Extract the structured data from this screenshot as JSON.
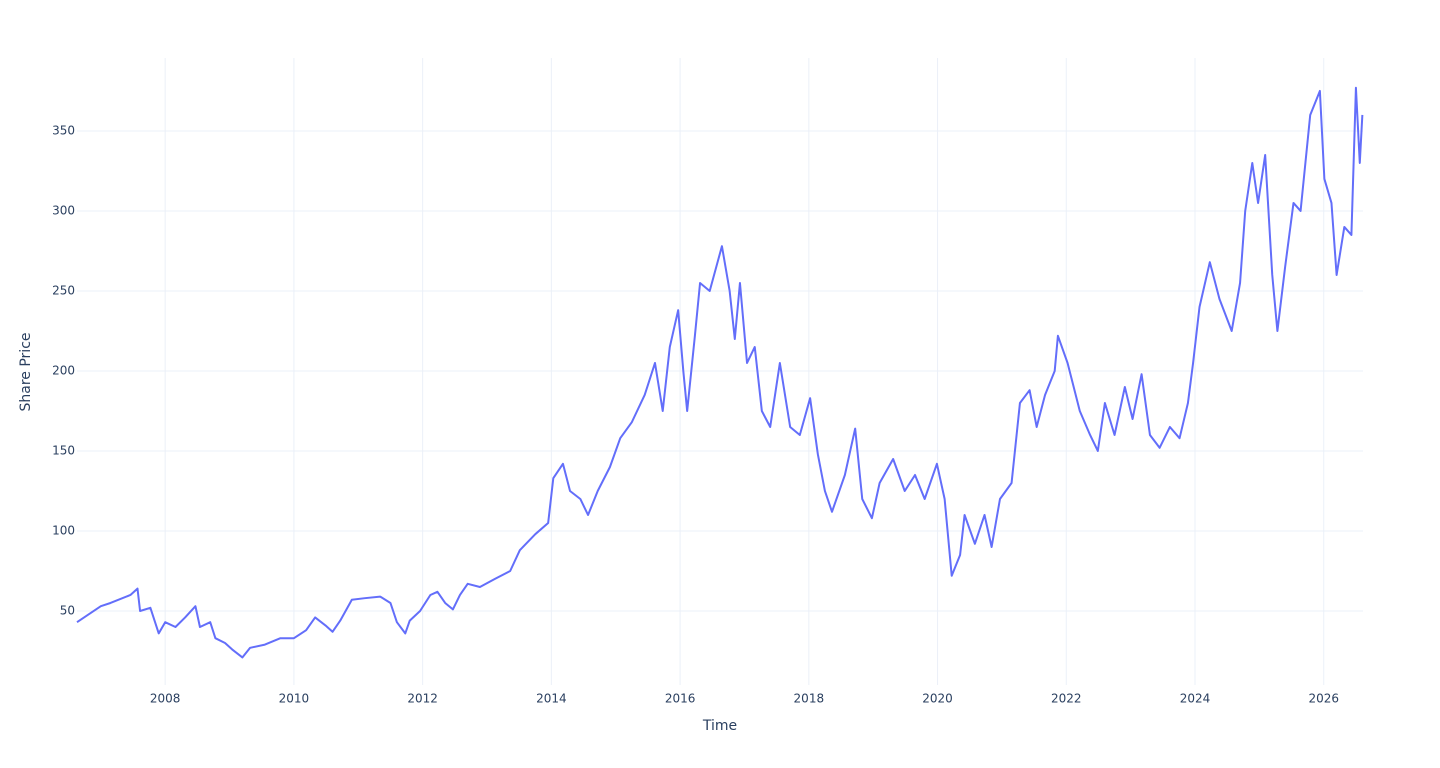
{
  "chart_data": {
    "type": "line",
    "x_label": "Time",
    "y_label": "Share Price",
    "x": [
      2006.63,
      2007.0,
      2007.15,
      2007.46,
      2007.57,
      2007.61,
      2007.77,
      2007.9,
      2008.0,
      2008.16,
      2008.31,
      2008.47,
      2008.54,
      2008.7,
      2008.78,
      2008.93,
      2009.04,
      2009.2,
      2009.32,
      2009.55,
      2009.79,
      2010.0,
      2010.19,
      2010.33,
      2010.49,
      2010.6,
      2010.72,
      2010.9,
      2011.1,
      2011.34,
      2011.5,
      2011.6,
      2011.73,
      2011.8,
      2011.96,
      2012.12,
      2012.23,
      2012.35,
      2012.47,
      2012.58,
      2012.7,
      2012.89,
      2013.12,
      2013.36,
      2013.51,
      2013.75,
      2013.95,
      2014.03,
      2014.18,
      2014.29,
      2014.45,
      2014.57,
      2014.72,
      2014.91,
      2015.07,
      2015.25,
      2015.45,
      2015.61,
      2015.73,
      2015.84,
      2015.97,
      2016.05,
      2016.11,
      2016.23,
      2016.31,
      2016.46,
      2016.65,
      2016.77,
      2016.85,
      2016.93,
      2017.04,
      2017.16,
      2017.27,
      2017.4,
      2017.55,
      2017.71,
      2017.86,
      2018.02,
      2018.14,
      2018.25,
      2018.36,
      2018.56,
      2018.72,
      2018.83,
      2018.98,
      2019.1,
      2019.31,
      2019.49,
      2019.65,
      2019.8,
      2019.99,
      2020.11,
      2020.22,
      2020.35,
      2020.42,
      2020.58,
      2020.73,
      2020.84,
      2020.97,
      2021.15,
      2021.28,
      2021.43,
      2021.54,
      2021.67,
      2021.82,
      2021.87,
      2022.02,
      2022.21,
      2022.37,
      2022.49,
      2022.6,
      2022.75,
      2022.91,
      2023.03,
      2023.17,
      2023.3,
      2023.45,
      2023.61,
      2023.76,
      2023.89,
      2023.97,
      2024.07,
      2024.23,
      2024.38,
      2024.57,
      2024.7,
      2024.78,
      2024.89,
      2024.98,
      2025.09,
      2025.2,
      2025.28,
      2025.4,
      2025.53,
      2025.64,
      2025.79,
      2025.94,
      2026.01,
      2026.12,
      2026.2,
      2026.32,
      2026.43,
      2026.5,
      2026.56,
      2026.6
    ],
    "series": [
      {
        "name": "Share Price",
        "color": "#636efa",
        "values": [
          43,
          53,
          55,
          60,
          64,
          50,
          52,
          36,
          43,
          40,
          46,
          53,
          40,
          43,
          33,
          30,
          26,
          21,
          27,
          29,
          33,
          33,
          38,
          46,
          41,
          37,
          44,
          57,
          58,
          59,
          55,
          43,
          36,
          44,
          50,
          60,
          62,
          55,
          51,
          60,
          67,
          65,
          70,
          75,
          88,
          98,
          105,
          133,
          142,
          125,
          120,
          110,
          125,
          140,
          158,
          168,
          185,
          205,
          175,
          215,
          238,
          200,
          175,
          222,
          255,
          250,
          278,
          250,
          220,
          255,
          205,
          215,
          175,
          165,
          205,
          165,
          160,
          183,
          148,
          125,
          112,
          135,
          164,
          120,
          108,
          130,
          145,
          125,
          135,
          120,
          142,
          120,
          72,
          85,
          110,
          92,
          110,
          90,
          120,
          130,
          180,
          188,
          165,
          185,
          200,
          222,
          205,
          175,
          160,
          150,
          180,
          160,
          190,
          170,
          198,
          160,
          152,
          165,
          158,
          180,
          205,
          240,
          268,
          245,
          225,
          255,
          300,
          330,
          305,
          335,
          260,
          225,
          265,
          305,
          300,
          360,
          375,
          320,
          305,
          260,
          290,
          285,
          377,
          330,
          360
        ]
      }
    ],
    "xlim": [
      2006.63,
      2026.61
    ],
    "xticks": [
      2008,
      2010,
      2012,
      2014,
      2016,
      2018,
      2020,
      2022,
      2024,
      2026
    ],
    "ylim": [
      3.75,
      395.6
    ],
    "yticks": [
      50,
      100,
      150,
      200,
      250,
      300,
      350
    ],
    "grid": true
  }
}
